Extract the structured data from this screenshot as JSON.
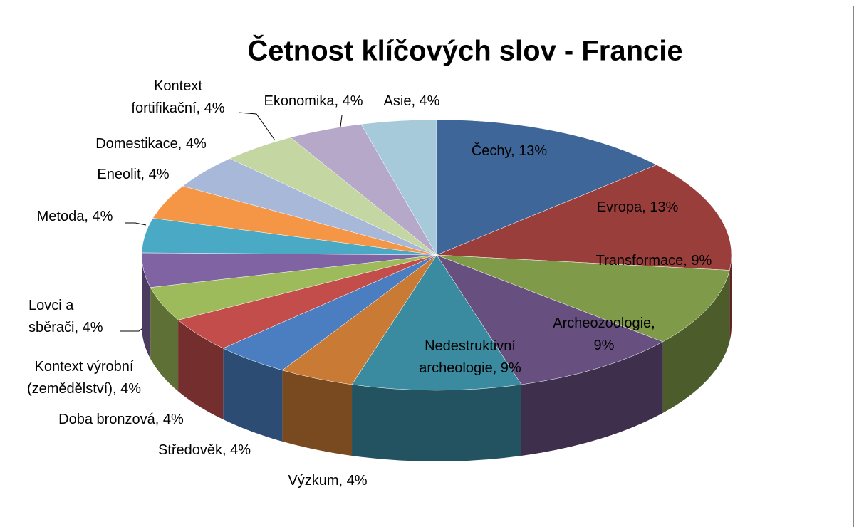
{
  "chart_data": {
    "type": "pie3d",
    "title": "Četnost klíčových slov - Francie",
    "labels": [
      "Čechy, 13%",
      "Evropa, 13%",
      "Transformace, 9%",
      "Archeozoologie,\n9%",
      "Nedestruktivní\narcheologie, 9%",
      "Výzkum, 4%",
      "Středověk, 4%",
      "Doba bronzová, 4%",
      "Kontext výrobní\n(zemědělství), 4%",
      "Lovci a\nsběrači, 4%",
      "Metoda, 4%",
      "Eneolit, 4%",
      "Domestikace, 4%",
      "Kontext\nfortifikační, 4%",
      "Ekonomika, 4%",
      "Asie, 4%"
    ],
    "values": [
      13,
      13,
      9,
      9,
      9,
      4,
      4,
      4,
      4,
      4,
      4,
      4,
      4,
      4,
      4,
      4
    ],
    "colors": [
      "#3f6699",
      "#9a3e3c",
      "#7f9a48",
      "#67507f",
      "#3a8ba0",
      "#c97a35",
      "#4b7ec0",
      "#c24d4b",
      "#9dbb5a",
      "#7f63a2",
      "#4aa9c4",
      "#f49645",
      "#a7b8d9",
      "#c4d6a2",
      "#b5a8c8",
      "#a6cad9"
    ]
  }
}
